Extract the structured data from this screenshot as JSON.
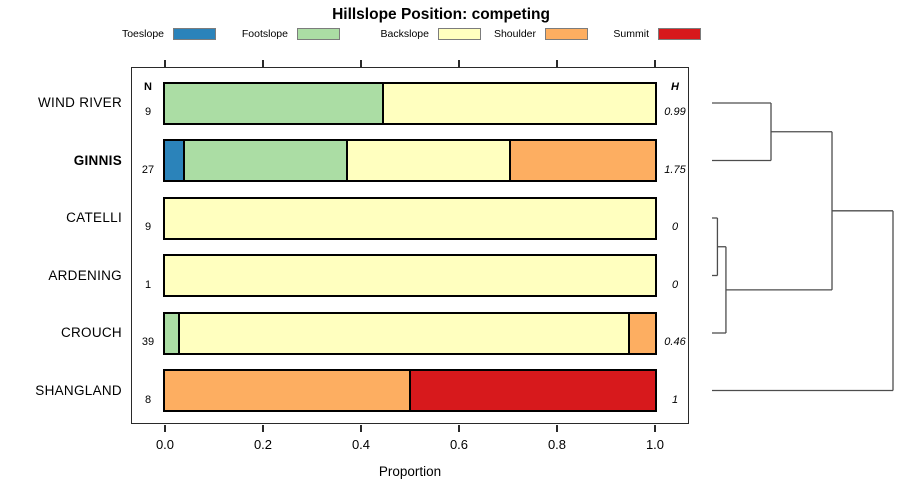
{
  "title": "Hillslope Position: competing",
  "xlabel": "Proportion",
  "columns": {
    "n_header": "N",
    "h_header": "H"
  },
  "legend": {
    "position": "top",
    "items": [
      {
        "label": "Toeslope",
        "color": "#2B83BA"
      },
      {
        "label": "Footslope",
        "color": "#ABDDA4"
      },
      {
        "label": "Backslope",
        "color": "#FFFFBF"
      },
      {
        "label": "Shoulder",
        "color": "#FDAE61"
      },
      {
        "label": "Summit",
        "color": "#D7191C"
      }
    ]
  },
  "chart_data": {
    "type": "bar",
    "subtype": "horizontal-stacked-proportion-with-dendrogram",
    "title": "Hillslope Position: competing",
    "xlabel": "Proportion",
    "xlim": [
      0,
      1
    ],
    "xticks": [
      0,
      0.2,
      0.4,
      0.6,
      0.8,
      1.0
    ],
    "xtick_labels": [
      "0.0",
      "0.2",
      "0.4",
      "0.6",
      "0.8",
      "1.0"
    ],
    "grid": false,
    "legend_position": "top",
    "categories": [
      "Toeslope",
      "Footslope",
      "Backslope",
      "Shoulder",
      "Summit"
    ],
    "colors": [
      "#2B83BA",
      "#ABDDA4",
      "#FFFFBF",
      "#FDAE61",
      "#D7191C"
    ],
    "bar_border_color": "#000000",
    "rows": [
      {
        "site": "WIND RIVER",
        "emphasis": false,
        "n": 9,
        "h": "0.99",
        "values": [
          0,
          0.444,
          0.556,
          0,
          0
        ]
      },
      {
        "site": "GINNIS",
        "emphasis": true,
        "n": 27,
        "h": "1.75",
        "values": [
          0.037,
          0.333,
          0.333,
          0.297,
          0
        ]
      },
      {
        "site": "CATELLI",
        "emphasis": false,
        "n": 9,
        "h": "0",
        "values": [
          0,
          0,
          1,
          0,
          0
        ]
      },
      {
        "site": "ARDENING",
        "emphasis": false,
        "n": 1,
        "h": "0",
        "values": [
          0,
          0,
          1,
          0,
          0
        ]
      },
      {
        "site": "CROUCH",
        "emphasis": false,
        "n": 39,
        "h": "0.46",
        "values": [
          0,
          0.026,
          0.923,
          0.051,
          0
        ]
      },
      {
        "site": "SHANGLAND",
        "emphasis": false,
        "n": 8,
        "h": "1",
        "values": [
          0,
          0,
          0,
          0.5,
          0.5
        ]
      }
    ],
    "dendrogram": {
      "leaves": [
        "WIND RIVER",
        "GINNIS",
        "CATELLI",
        "ARDENING",
        "CROUCH",
        "SHANGLAND"
      ],
      "merges": [
        {
          "a": "leaf2",
          "b": "leaf3",
          "height": 0.03
        },
        {
          "a": "m0",
          "b": "leaf4",
          "height": 0.077
        },
        {
          "a": "leaf0",
          "b": "leaf1",
          "height": 0.326
        },
        {
          "a": "m2",
          "b": "m1",
          "height": 0.663
        },
        {
          "a": "m3",
          "b": "leaf5",
          "height": 1.0
        }
      ]
    }
  }
}
